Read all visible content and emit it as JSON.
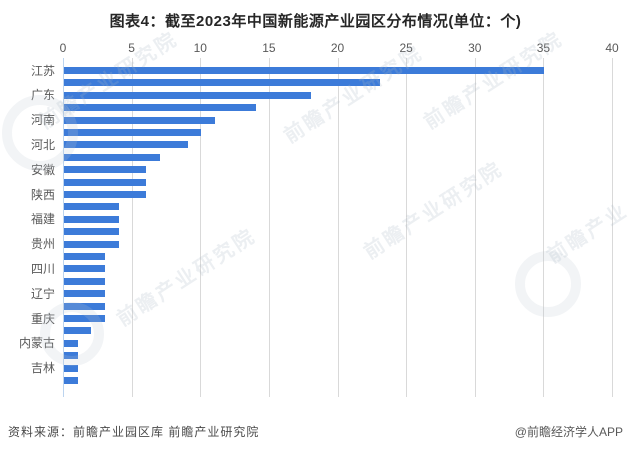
{
  "title": "图表4：截至2023年中国新能源产业园区分布情况(单位：个)",
  "chart_data": {
    "type": "bar",
    "orientation": "horizontal",
    "title": "图表4：截至2023年中国新能源产业园区分布情况(单位：个)",
    "unit_label": "单位：个",
    "categories": [
      "江苏",
      "",
      "广东",
      "",
      "河南",
      "",
      "河北",
      "",
      "安徽",
      "",
      "陕西",
      "",
      "福建",
      "",
      "贵州",
      "",
      "四川",
      "",
      "辽宁",
      "",
      "重庆",
      "",
      "内蒙古",
      "",
      "吉林",
      ""
    ],
    "values": [
      35,
      23,
      18,
      14,
      11,
      10,
      9,
      7,
      6,
      6,
      6,
      4,
      4,
      4,
      4,
      3,
      3,
      3,
      3,
      3,
      3,
      2,
      1,
      1,
      1,
      1
    ],
    "x_ticks": [
      "0",
      "5",
      "10",
      "15",
      "20",
      "25",
      "30",
      "35",
      "40"
    ],
    "xlim": [
      0,
      40
    ],
    "grid": "vertical-gridlines-on",
    "legend_position": "none",
    "bar_color": "#3c7bd9",
    "gridline_color": "#d9d9d9",
    "zero_axis_color": "#bcd4ef",
    "tick_label_color": "#595959",
    "note": "axis labels shown for every second bar only"
  },
  "footer": {
    "source": "资料来源：前瞻产业园区库 前瞻产业研究院",
    "credit": "@前瞻经济学人APP"
  },
  "watermark": {
    "text": "前瞻产业研究院",
    "text_short": "前瞻产业",
    "logo": "qianzhan-circle-logo"
  }
}
